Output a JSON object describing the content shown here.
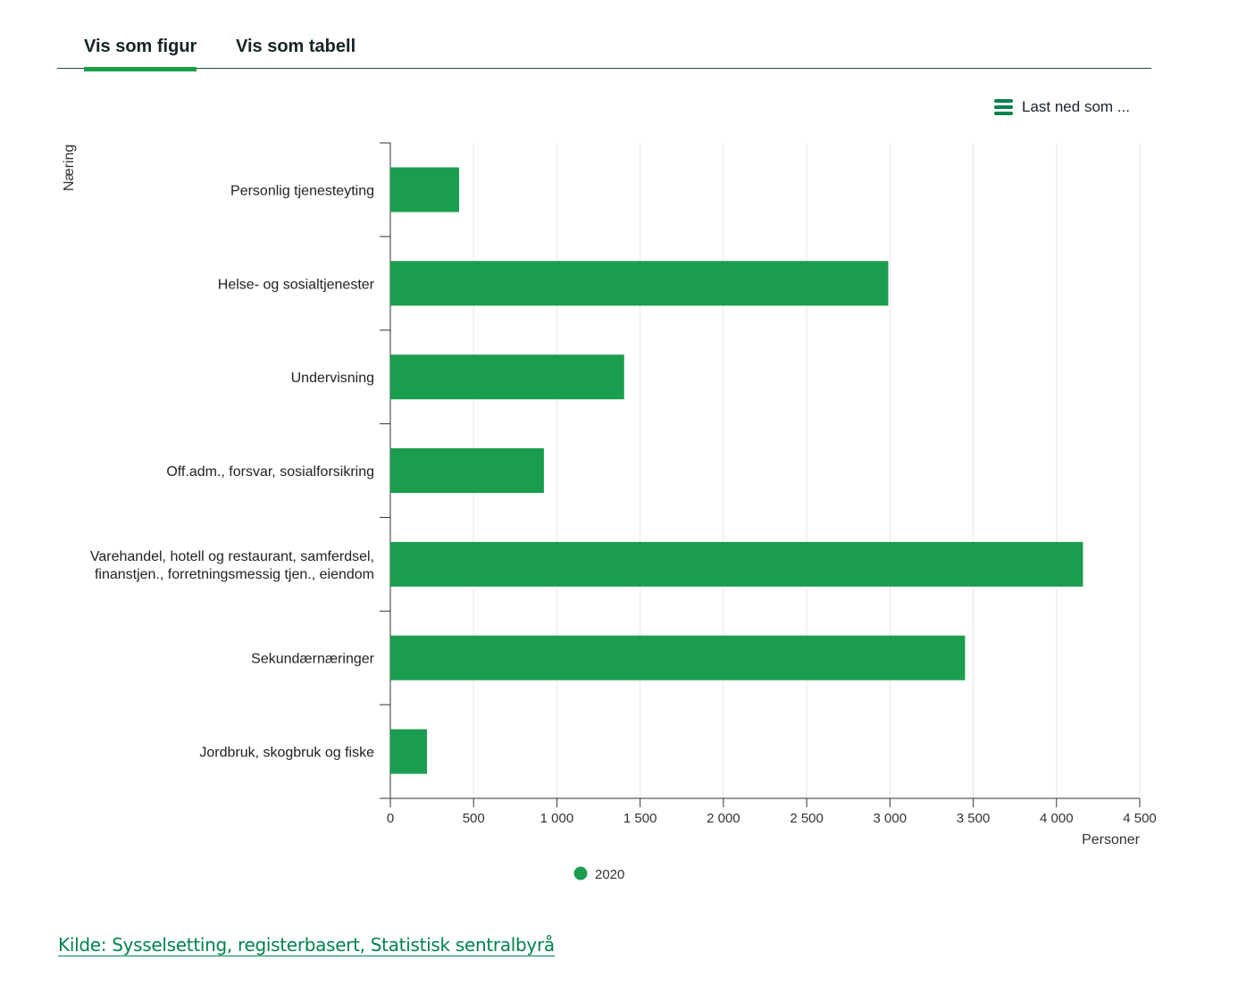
{
  "tabs": [
    {
      "label": "Vis som figur",
      "active": true
    },
    {
      "label": "Vis som tabell",
      "active": false
    }
  ],
  "download": {
    "label": "Last ned som ...",
    "icon": "menu-icon"
  },
  "source": {
    "label": "Kilde: Sysselsetting, registerbasert, Statistisk sentralbyrå"
  },
  "colors": {
    "bar": "#1a9d4e",
    "accent": "#00824d"
  },
  "chart_data": {
    "type": "bar",
    "orientation": "horizontal",
    "xlabel": "Personer",
    "ylabel": "Næring",
    "categories": [
      [
        "Personlig tjenesteyting"
      ],
      [
        "Helse- og sosialtjenester"
      ],
      [
        "Undervisning"
      ],
      [
        "Off.adm., forsvar, sosialforsikring"
      ],
      [
        "Varehandel, hotell og restaurant, samferdsel,",
        "finanstjen., forretningsmessig tjen., eiendom"
      ],
      [
        "Sekundærnæringer"
      ],
      [
        "Jordbruk, skogbruk og fiske"
      ]
    ],
    "series": [
      {
        "name": "2020",
        "values": [
          413,
          2990,
          1404,
          922,
          4159,
          3451,
          220
        ]
      }
    ],
    "xlim": [
      0,
      4500
    ],
    "xticks": [
      0,
      500,
      1000,
      1500,
      2000,
      2500,
      3000,
      3500,
      4000,
      4500
    ],
    "xtick_labels": [
      "0",
      "500",
      "1 000",
      "1 500",
      "2 000",
      "2 500",
      "3 000",
      "3 500",
      "4 000",
      "4 500"
    ],
    "grid": true,
    "legend": "bottom-center"
  }
}
